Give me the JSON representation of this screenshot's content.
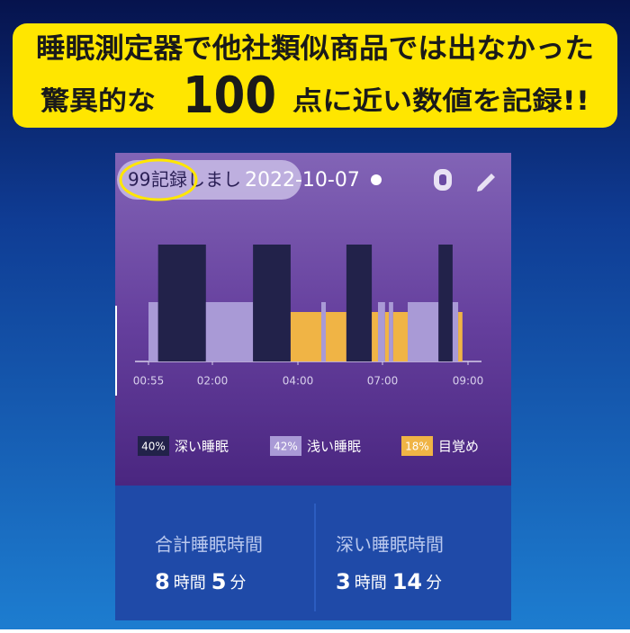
{
  "banner": {
    "line1": "睡眠測定器で他社類似商品では出なかった",
    "line2_start": "驚異的な",
    "line2_number": "100",
    "line2_end": "点に近い数値を記録!!"
  },
  "header": {
    "score": "99",
    "score_text": "記録しまし",
    "date": "2022-10-07"
  },
  "chart_data": {
    "type": "timeline",
    "ticks": [
      {
        "value": 0.917,
        "label": "00:55"
      },
      {
        "value": 2,
        "label": "02:00"
      },
      {
        "value": 4,
        "label": "04:00"
      },
      {
        "value": 7,
        "label": "07:00"
      },
      {
        "value": 9,
        "label": "09:00"
      }
    ],
    "legend": [
      {
        "name": "深い睡眠",
        "value": 40,
        "label": "40%",
        "color": "#22224a"
      },
      {
        "name": "浅い睡眠",
        "value": 42,
        "label": "42%",
        "color": "#a99ad6"
      },
      {
        "name": "目覚め",
        "value": 18,
        "label": "18%",
        "color": "#f0b445"
      }
    ],
    "segments": [
      {
        "stage": 1,
        "start": 0.917,
        "end": 1.08
      },
      {
        "stage": 0,
        "start": 1.08,
        "end": 1.89
      },
      {
        "stage": 1,
        "start": 1.89,
        "end": 2.95
      },
      {
        "stage": 0,
        "start": 2.95,
        "end": 3.83
      },
      {
        "stage": 2,
        "start": 3.83,
        "end": 4.83
      },
      {
        "stage": 1,
        "start": 4.83,
        "end": 4.99
      },
      {
        "stage": 2,
        "start": 4.99,
        "end": 5.72
      },
      {
        "stage": 0,
        "start": 5.72,
        "end": 6.62
      },
      {
        "stage": 2,
        "start": 6.62,
        "end": 6.84
      },
      {
        "stage": 1,
        "start": 6.84,
        "end": 7.06
      },
      {
        "stage": 2,
        "start": 7.06,
        "end": 7.15
      },
      {
        "stage": 1,
        "start": 7.15,
        "end": 7.25
      },
      {
        "stage": 2,
        "start": 7.25,
        "end": 7.59
      },
      {
        "stage": 1,
        "start": 7.59,
        "end": 8.31
      },
      {
        "stage": 0,
        "start": 8.31,
        "end": 8.64
      },
      {
        "stage": 1,
        "start": 8.64,
        "end": 8.77
      },
      {
        "stage": 2,
        "start": 8.77,
        "end": 8.87
      }
    ]
  },
  "stats": [
    {
      "label": "合計睡眠時間",
      "hours": "8",
      "hours_unit": "時間",
      "minutes": "5",
      "minutes_unit": "分"
    },
    {
      "label": "深い睡眠時間",
      "hours": "3",
      "hours_unit": "時間",
      "minutes": "14",
      "minutes_unit": "分"
    }
  ]
}
